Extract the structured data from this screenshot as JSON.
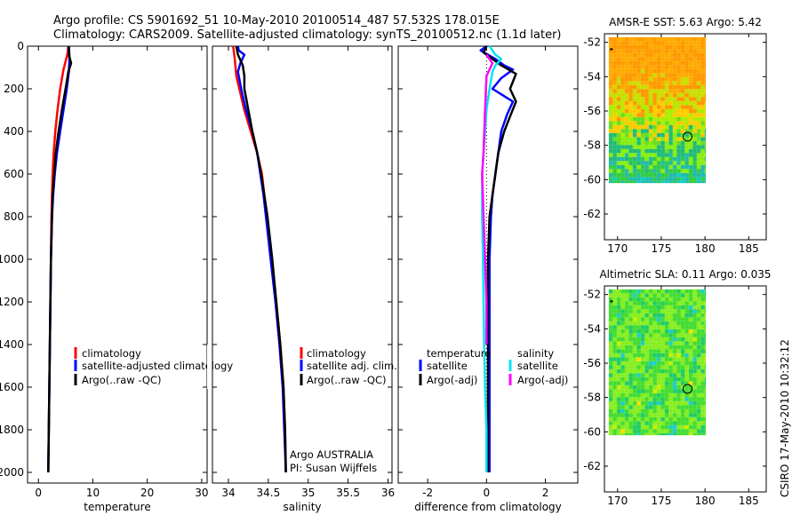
{
  "header": {
    "line1": "Argo profile: CS 5901692_51 10-May-2010 20100514_487 57.532S 178.015E",
    "line2": "Climatology: CARS2009. Satellite-adjusted climatology: synTS_20100512.nc (1.1d later)"
  },
  "footer": {
    "stamp": "CSIRO 17-May-2010 10:32:12"
  },
  "colors": {
    "red": "#ff0000",
    "blue": "#0000ff",
    "black": "#000000",
    "cyan": "#00e5ee",
    "magenta": "#ff00ff"
  },
  "chart_data": [
    {
      "type": "line",
      "id": "temperature",
      "xlabel": "temperature",
      "xlim": [
        -2,
        31
      ],
      "xticks": [
        "0",
        "10",
        "20",
        "30"
      ],
      "ylim": [
        2050,
        0
      ],
      "yticks": [
        "0",
        "200",
        "400",
        "600",
        "800",
        "1000",
        "1200",
        "1400",
        "1600",
        "1800",
        "2000"
      ],
      "series": [
        {
          "name": "climatology",
          "color": "red",
          "points": [
            [
              5.5,
              0
            ],
            [
              5.3,
              40
            ],
            [
              4.6,
              110
            ],
            [
              4.0,
              200
            ],
            [
              3.5,
              300
            ],
            [
              3.1,
              400
            ],
            [
              2.8,
              500
            ],
            [
              2.6,
              600
            ],
            [
              2.5,
              700
            ],
            [
              2.4,
              800
            ],
            [
              2.3,
              1000
            ],
            [
              2.2,
              1200
            ],
            [
              2.1,
              1400
            ],
            [
              2.0,
              1600
            ],
            [
              1.9,
              1800
            ],
            [
              1.8,
              2000
            ]
          ]
        },
        {
          "name": "satellite-adjusted climatology",
          "color": "blue",
          "points": [
            [
              5.5,
              0
            ],
            [
              5.7,
              60
            ],
            [
              5.6,
              120
            ],
            [
              5.2,
              200
            ],
            [
              4.6,
              300
            ],
            [
              4.0,
              400
            ],
            [
              3.4,
              500
            ],
            [
              3.0,
              600
            ],
            [
              2.7,
              700
            ],
            [
              2.5,
              800
            ],
            [
              2.3,
              1000
            ],
            [
              2.2,
              1200
            ],
            [
              2.1,
              1400
            ],
            [
              2.0,
              1600
            ],
            [
              1.9,
              1800
            ],
            [
              1.8,
              2000
            ]
          ]
        },
        {
          "name": "Argo(..raw -QC)",
          "color": "black",
          "points": [
            [
              5.6,
              0
            ],
            [
              5.7,
              50
            ],
            [
              6.0,
              80
            ],
            [
              5.5,
              120
            ],
            [
              5.0,
              200
            ],
            [
              4.3,
              300
            ],
            [
              3.7,
              400
            ],
            [
              3.2,
              500
            ],
            [
              2.9,
              600
            ],
            [
              2.6,
              700
            ],
            [
              2.5,
              800
            ],
            [
              2.3,
              1000
            ],
            [
              2.2,
              1200
            ],
            [
              2.1,
              1400
            ],
            [
              2.0,
              1600
            ],
            [
              1.9,
              1800
            ],
            [
              1.8,
              2000
            ]
          ]
        }
      ],
      "legend": [
        "climatology",
        "satellite-adjusted climatology",
        "Argo(..raw -QC)"
      ]
    },
    {
      "type": "line",
      "id": "salinity",
      "xlabel": "salinity",
      "xlim": [
        33.8,
        36.05
      ],
      "xticks": [
        "34",
        "34.5",
        "35",
        "35.5",
        "36"
      ],
      "ylim": [
        2050,
        0
      ],
      "series": [
        {
          "name": "climatology",
          "color": "red",
          "points": [
            [
              34.06,
              0
            ],
            [
              34.08,
              60
            ],
            [
              34.1,
              140
            ],
            [
              34.15,
              220
            ],
            [
              34.2,
              300
            ],
            [
              34.28,
              400
            ],
            [
              34.36,
              500
            ],
            [
              34.42,
              600
            ],
            [
              34.45,
              700
            ],
            [
              34.48,
              800
            ],
            [
              34.54,
              1000
            ],
            [
              34.6,
              1200
            ],
            [
              34.65,
              1400
            ],
            [
              34.69,
              1600
            ],
            [
              34.71,
              1800
            ],
            [
              34.72,
              2000
            ]
          ]
        },
        {
          "name": "satellite adj. clim.",
          "color": "blue",
          "points": [
            [
              34.12,
              0
            ],
            [
              34.13,
              20
            ],
            [
              34.2,
              40
            ],
            [
              34.15,
              80
            ],
            [
              34.12,
              120
            ],
            [
              34.16,
              200
            ],
            [
              34.22,
              300
            ],
            [
              34.3,
              400
            ],
            [
              34.36,
              500
            ],
            [
              34.4,
              600
            ],
            [
              34.44,
              700
            ],
            [
              34.47,
              800
            ],
            [
              34.53,
              1000
            ],
            [
              34.59,
              1200
            ],
            [
              34.64,
              1400
            ],
            [
              34.68,
              1600
            ],
            [
              34.7,
              1800
            ],
            [
              34.72,
              2000
            ]
          ]
        },
        {
          "name": "Argo(..raw -QC)",
          "color": "black",
          "points": [
            [
              34.1,
              0
            ],
            [
              34.12,
              40
            ],
            [
              34.18,
              90
            ],
            [
              34.2,
              140
            ],
            [
              34.2,
              200
            ],
            [
              34.25,
              300
            ],
            [
              34.3,
              400
            ],
            [
              34.36,
              500
            ],
            [
              34.41,
              600
            ],
            [
              34.45,
              700
            ],
            [
              34.49,
              800
            ],
            [
              34.55,
              1000
            ],
            [
              34.6,
              1200
            ],
            [
              34.65,
              1400
            ],
            [
              34.69,
              1600
            ],
            [
              34.71,
              1800
            ],
            [
              34.72,
              2000
            ]
          ]
        }
      ],
      "legend": [
        "climatology",
        "satellite adj. clim.",
        "Argo(..raw -QC)"
      ],
      "annotations": [
        "Argo AUSTRALIA",
        "PI: Susan Wijffels"
      ]
    },
    {
      "type": "line",
      "id": "difference",
      "xlabel": "difference from climatology",
      "xlim": [
        -3,
        3.1
      ],
      "xticks": [
        "-2",
        "0",
        "2"
      ],
      "ylim": [
        2050,
        0
      ],
      "series": [
        {
          "name": "temperature satellite",
          "color": "blue",
          "points": [
            [
              0.0,
              0
            ],
            [
              -0.2,
              20
            ],
            [
              0.3,
              60
            ],
            [
              0.6,
              90
            ],
            [
              0.9,
              110
            ],
            [
              0.5,
              150
            ],
            [
              0.2,
              200
            ],
            [
              0.9,
              260
            ],
            [
              0.7,
              320
            ],
            [
              0.5,
              400
            ],
            [
              0.4,
              500
            ],
            [
              0.3,
              600
            ],
            [
              0.2,
              700
            ],
            [
              0.15,
              800
            ],
            [
              0.1,
              1000
            ],
            [
              0.1,
              1200
            ],
            [
              0.1,
              1400
            ],
            [
              0.1,
              1600
            ],
            [
              0.1,
              1800
            ],
            [
              0.1,
              2000
            ]
          ]
        },
        {
          "name": "temperature Argo(-adj)",
          "color": "black",
          "points": [
            [
              0.0,
              0
            ],
            [
              -0.1,
              30
            ],
            [
              0.2,
              60
            ],
            [
              0.5,
              90
            ],
            [
              1.0,
              130
            ],
            [
              0.8,
              200
            ],
            [
              1.0,
              260
            ],
            [
              0.8,
              330
            ],
            [
              0.6,
              400
            ],
            [
              0.4,
              500
            ],
            [
              0.3,
              600
            ],
            [
              0.2,
              700
            ],
            [
              0.1,
              800
            ],
            [
              0.05,
              1000
            ],
            [
              0.05,
              1200
            ],
            [
              0.05,
              1400
            ],
            [
              0.05,
              1600
            ],
            [
              0.05,
              1800
            ],
            [
              0.05,
              2000
            ]
          ]
        },
        {
          "name": "salinity satellite",
          "color": "cyan",
          "points": [
            [
              0.1,
              0
            ],
            [
              0.3,
              40
            ],
            [
              0.5,
              60
            ],
            [
              0.3,
              90
            ],
            [
              0.2,
              120
            ],
            [
              0.1,
              200
            ],
            [
              0.0,
              300
            ],
            [
              -0.05,
              400
            ],
            [
              -0.1,
              500
            ],
            [
              -0.15,
              600
            ],
            [
              -0.15,
              700
            ],
            [
              -0.15,
              800
            ],
            [
              -0.12,
              1000
            ],
            [
              -0.1,
              1200
            ],
            [
              -0.08,
              1400
            ],
            [
              -0.05,
              1600
            ],
            [
              0.0,
              1800
            ],
            [
              0.0,
              2000
            ]
          ]
        },
        {
          "name": "salinity Argo(-adj)",
          "color": "magenta",
          "points": [
            [
              0.0,
              40
            ],
            [
              0.2,
              80
            ],
            [
              0.0,
              140
            ],
            [
              -0.05,
              300
            ],
            [
              -0.1,
              500
            ],
            [
              -0.15,
              600
            ],
            [
              -0.1,
              800
            ],
            [
              -0.05,
              1000
            ],
            [
              0.0,
              1200
            ],
            [
              0.0,
              1400
            ]
          ]
        }
      ],
      "legend": {
        "temperature_heading": "temperature",
        "salinity_heading": "salinity",
        "items": [
          "satellite",
          "Argo(-adj)",
          "satellite",
          "Argo(-adj)"
        ]
      }
    },
    {
      "type": "heatmap",
      "id": "sst-map",
      "title": "AMSR-E SST: 5.63 Argo: 5.42",
      "xlim": [
        168.5,
        187
      ],
      "ylim": [
        -63.5,
        -51.5
      ],
      "xticks": [
        "170",
        "175",
        "180",
        "185"
      ],
      "yticks": [
        "-52",
        "-54",
        "-56",
        "-58",
        "-60",
        "-62"
      ],
      "data_extent": {
        "lon": [
          169,
          180.1
        ],
        "lat": [
          -60.2,
          -51.7
        ]
      },
      "marker": [
        178.0,
        -57.5
      ]
    },
    {
      "type": "heatmap",
      "id": "sla-map",
      "title": "Altimetric SLA: 0.11 Argo: 0.035",
      "xlim": [
        168.5,
        187
      ],
      "ylim": [
        -63.5,
        -51.5
      ],
      "xticks": [
        "170",
        "175",
        "180",
        "185"
      ],
      "yticks": [
        "-52",
        "-54",
        "-56",
        "-58",
        "-60",
        "-62"
      ],
      "data_extent": {
        "lon": [
          169,
          180.1
        ],
        "lat": [
          -60.2,
          -51.7
        ]
      },
      "marker": [
        178.0,
        -57.5
      ]
    }
  ]
}
